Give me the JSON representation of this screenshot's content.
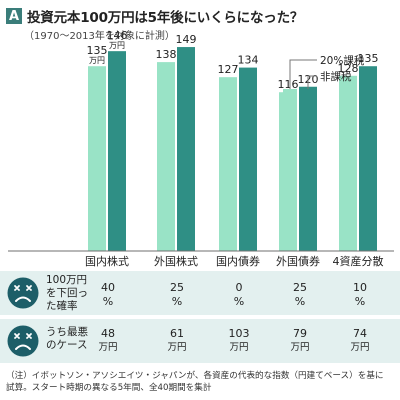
{
  "header": {
    "badge": "A",
    "title": "投資元本100万円は5年後にいくらになった？",
    "subtitle": "（1970～2013年を対象に計測）"
  },
  "chart_data": {
    "type": "bar",
    "title": "投資元本100万円は5年後にいくらになった？",
    "subtitle": "（1970～2013年を対象に計測）",
    "categories": [
      "国内株式",
      "外国株式",
      "国内債券",
      "外国債券",
      "4資産分散"
    ],
    "series": [
      {
        "name": "20%課税",
        "values": [
          135,
          138,
          127,
          116,
          128
        ],
        "color": "#99e3c6"
      },
      {
        "name": "非課税",
        "values": [
          146,
          149,
          134,
          120,
          135
        ],
        "color": "#2f8f85"
      }
    ],
    "unit": "万円",
    "ylim": [
      0,
      160
    ],
    "grid": false,
    "legend_position": "top-right"
  },
  "table": {
    "rows": [
      {
        "label_lines": [
          "100万円",
          "を下回っ",
          "た確率"
        ],
        "values": [
          "40",
          "25",
          "0",
          "25",
          "10"
        ],
        "unit": "%"
      },
      {
        "label_lines": [
          "うち最悪",
          "のケース"
        ],
        "values": [
          "48",
          "61",
          "103",
          "79",
          "74"
        ],
        "unit": "万円"
      }
    ]
  },
  "note": {
    "lines": [
      "（注）イボットソン・アソシエイツ・ジャパンが、各資産の代表的な指数（円建てベース）を基に",
      "試算。スタート時期の異なる5年間、全40期間を集計"
    ]
  }
}
